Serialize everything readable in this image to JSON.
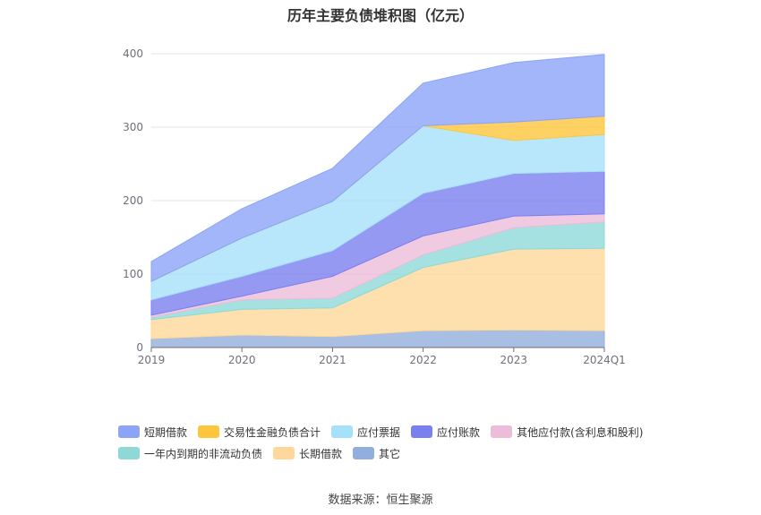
{
  "chart_data": {
    "type": "area",
    "stacked": true,
    "title": "历年主要负债堆积图（亿元）",
    "categories": [
      "2019",
      "2020",
      "2021",
      "2022",
      "2023",
      "2024Q1"
    ],
    "ylim": [
      0,
      400
    ],
    "yticks": [
      0,
      100,
      200,
      300,
      400
    ],
    "grid": true,
    "legend_position": "bottom",
    "series": [
      {
        "name": "其它",
        "color": "#92aedc",
        "values": [
          12,
          17,
          15,
          23,
          24,
          23
        ]
      },
      {
        "name": "长期借款",
        "color": "#fed89a",
        "values": [
          26,
          35,
          39,
          86,
          110,
          112
        ]
      },
      {
        "name": "一年内到期的非流动负债",
        "color": "#8ed9d8",
        "values": [
          3,
          13,
          13,
          17,
          29,
          36
        ]
      },
      {
        "name": "其他应付款(含利息和股利)",
        "color": "#ebbdd9",
        "values": [
          3,
          5,
          30,
          26,
          16,
          11
        ]
      },
      {
        "name": "应付账款",
        "color": "#7b80ef",
        "values": [
          21,
          27,
          35,
          58,
          58,
          58
        ]
      },
      {
        "name": "应付票据",
        "color": "#a6e1fb",
        "values": [
          25,
          52,
          67,
          92,
          45,
          50
        ]
      },
      {
        "name": "交易性金融负债合计",
        "color": "#fec63c",
        "values": [
          0,
          0,
          0,
          0,
          25,
          25
        ]
      },
      {
        "name": "短期借款",
        "color": "#8ca4f7",
        "values": [
          27,
          40,
          45,
          58,
          81,
          84
        ]
      }
    ],
    "legend_order": [
      "短期借款",
      "交易性金融负债合计",
      "应付票据",
      "应付账款",
      "其他应付款(含利息和股利)",
      "一年内到期的非流动负债",
      "长期借款",
      "其它"
    ]
  },
  "source_text": "数据来源：恒生聚源"
}
